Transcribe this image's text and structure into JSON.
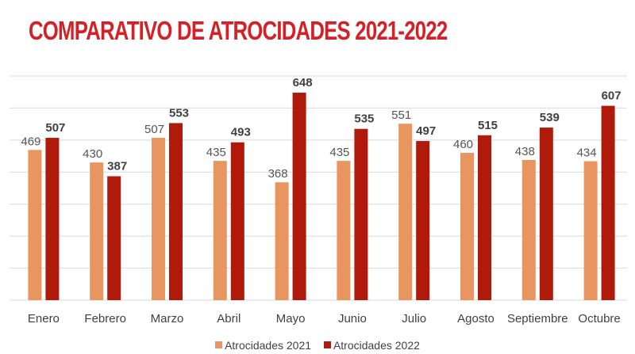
{
  "title": "COMPARATIVO DE ATROCIDADES 2021-2022",
  "chart_data": {
    "type": "bar",
    "title": "COMPARATIVO DE ATROCIDADES 2021-2022",
    "xlabel": "",
    "ylabel": "",
    "categories": [
      "Enero",
      "Febrero",
      "Marzo",
      "Abril",
      "Mayo",
      "Junio",
      "Julio",
      "Agosto",
      "Septiembre",
      "Octubre"
    ],
    "series": [
      {
        "name": "Atrocidades 2021",
        "color": "#e8955f",
        "values": [
          469,
          430,
          507,
          435,
          368,
          435,
          551,
          460,
          438,
          434
        ]
      },
      {
        "name": "Atrocidades 2022",
        "color": "#b01a0b",
        "values": [
          507,
          387,
          553,
          493,
          648,
          535,
          497,
          515,
          539,
          607
        ]
      }
    ],
    "ylim": [
      0,
      700
    ],
    "y_gridlines": [
      0,
      100,
      200,
      300,
      400,
      500,
      600,
      700
    ],
    "grid": true,
    "y_tick_labels_visible": false,
    "data_labels": true,
    "legend_position": "bottom"
  }
}
